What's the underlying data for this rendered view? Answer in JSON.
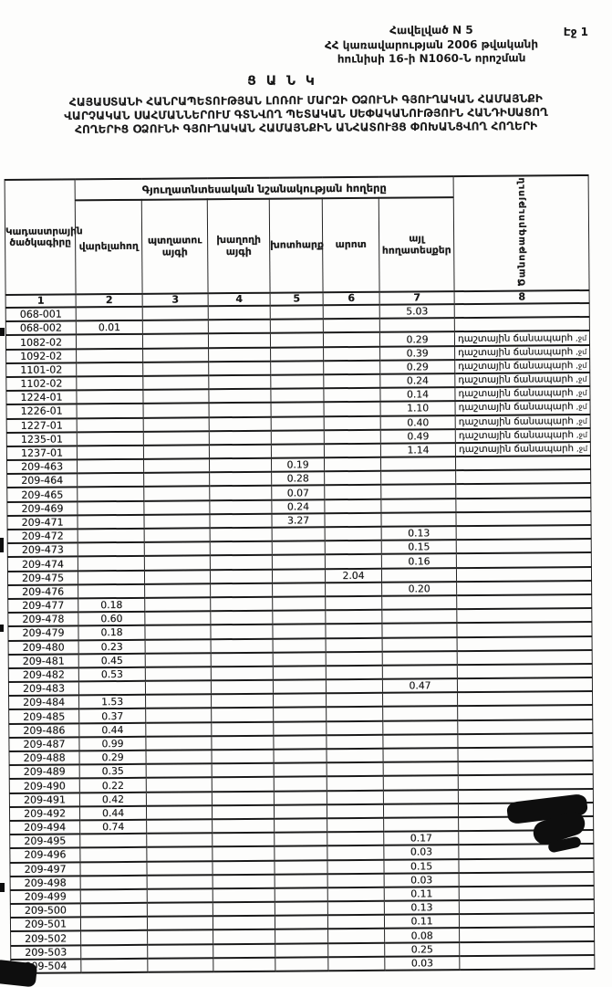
{
  "page": {
    "page_label": "Էջ 1",
    "appendix": [
      "Հավելված N 5",
      "ՀՀ կառավարության 2006 թվականի",
      "հունիսի 16-ի N1060-Ն որոշման"
    ],
    "doc_title": "Ց Ա Ն Կ",
    "subtitle": [
      "ՀԱՅԱՍՏԱՆԻ ՀԱՆՐԱՊԵՏՈՒԹՅԱՆ ԼՈՌՈՒ ՄԱՐԶԻ ՕՁՈՒՆԻ ԳՅՈՒՂԱԿԱՆ ՀԱՄԱՅՆՔԻ",
      "ՎԱՐՉԱԿԱՆ ՍԱՀՄԱՆՆԵՐՈՒՄ ԳՏՆՎՈՂ ՊԵՏԱԿԱՆ ՍԵՓԱԿԱՆՈՒԹՅՈՒՆ ՀԱՆԴԻՍԱՑՈՂ",
      "ՀՈՂԵՐԻՑ ՕՁՈՒՆԻ ԳՅՈՒՂԱԿԱՆ ՀԱՄԱՅՆՔԻՆ ԱՆՀԱՏՈՒՅՑ ՓՈԽԱՆՑՎՈՂ ՀՈՂԵՐԻ"
    ]
  },
  "table": {
    "group_header": "Գյուղատնտեսական նշանակության հողերը",
    "col1_header": "Կադաստրային ծածկագիրը",
    "note_header": "Ծանոթագրություն",
    "columns": [
      "վարելահող",
      "պտղատու այգի",
      "խաղողի այգի",
      "խոտհարք",
      "արոտ",
      "այլ հողատեսքեր"
    ],
    "column_numbers": [
      "1",
      "2",
      "3",
      "4",
      "5",
      "6",
      "7",
      "8"
    ],
    "note_suffix": ",ջմ",
    "rows": [
      [
        "068-001",
        "",
        "",
        "",
        "",
        "",
        "5.03",
        ""
      ],
      [
        "068-002",
        "0.01",
        "",
        "",
        "",
        "",
        "",
        ""
      ],
      [
        "1082-02",
        "",
        "",
        "",
        "",
        "",
        "0.29",
        "դաշտային ճանապարհ"
      ],
      [
        "1092-02",
        "",
        "",
        "",
        "",
        "",
        "0.39",
        "դաշտային ճանապարհ"
      ],
      [
        "1101-02",
        "",
        "",
        "",
        "",
        "",
        "0.29",
        "դաշտային ճանապարհ"
      ],
      [
        "1102-02",
        "",
        "",
        "",
        "",
        "",
        "0.24",
        "դաշտային ճանապարհ"
      ],
      [
        "1224-01",
        "",
        "",
        "",
        "",
        "",
        "0.14",
        "դաշտային ճանապարհ"
      ],
      [
        "1226-01",
        "",
        "",
        "",
        "",
        "",
        "1.10",
        "դաշտային ճանապարհ"
      ],
      [
        "1227-01",
        "",
        "",
        "",
        "",
        "",
        "0.40",
        "դաշտային ճանապարհ"
      ],
      [
        "1235-01",
        "",
        "",
        "",
        "",
        "",
        "0.49",
        "դաշտային ճանապարհ"
      ],
      [
        "1237-01",
        "",
        "",
        "",
        "",
        "",
        "1.14",
        "դաշտային ճանապարհ"
      ],
      [
        "209-463",
        "",
        "",
        "",
        "0.19",
        "",
        "",
        ""
      ],
      [
        "209-464",
        "",
        "",
        "",
        "0.28",
        "",
        "",
        ""
      ],
      [
        "209-465",
        "",
        "",
        "",
        "0.07",
        "",
        "",
        ""
      ],
      [
        "209-469",
        "",
        "",
        "",
        "0.24",
        "",
        "",
        ""
      ],
      [
        "209-471",
        "",
        "",
        "",
        "3.27",
        "",
        "",
        ""
      ],
      [
        "209-472",
        "",
        "",
        "",
        "",
        "",
        "0.13",
        ""
      ],
      [
        "209-473",
        "",
        "",
        "",
        "",
        "",
        "0.15",
        ""
      ],
      [
        "209-474",
        "",
        "",
        "",
        "",
        "",
        "0.16",
        ""
      ],
      [
        "209-475",
        "",
        "",
        "",
        "",
        "2.04",
        "",
        ""
      ],
      [
        "209-476",
        "",
        "",
        "",
        "",
        "",
        "0.20",
        ""
      ],
      [
        "209-477",
        "0.18",
        "",
        "",
        "",
        "",
        "",
        ""
      ],
      [
        "209-478",
        "0.60",
        "",
        "",
        "",
        "",
        "",
        ""
      ],
      [
        "209-479",
        "0.18",
        "",
        "",
        "",
        "",
        "",
        ""
      ],
      [
        "209-480",
        "0.23",
        "",
        "",
        "",
        "",
        "",
        ""
      ],
      [
        "209-481",
        "0.45",
        "",
        "",
        "",
        "",
        "",
        ""
      ],
      [
        "209-482",
        "0.53",
        "",
        "",
        "",
        "",
        "",
        ""
      ],
      [
        "209-483",
        "",
        "",
        "",
        "",
        "",
        "0.47",
        ""
      ],
      [
        "209-484",
        "1.53",
        "",
        "",
        "",
        "",
        "",
        ""
      ],
      [
        "209-485",
        "0.37",
        "",
        "",
        "",
        "",
        "",
        ""
      ],
      [
        "209-486",
        "0.44",
        "",
        "",
        "",
        "",
        "",
        ""
      ],
      [
        "209-487",
        "0.99",
        "",
        "",
        "",
        "",
        "",
        ""
      ],
      [
        "209-488",
        "0.29",
        "",
        "",
        "",
        "",
        "",
        ""
      ],
      [
        "209-489",
        "0.35",
        "",
        "",
        "",
        "",
        "",
        ""
      ],
      [
        "209-490",
        "0.22",
        "",
        "",
        "",
        "",
        "",
        ""
      ],
      [
        "209-491",
        "0.42",
        "",
        "",
        "",
        "",
        "",
        ""
      ],
      [
        "209-492",
        "0.44",
        "",
        "",
        "",
        "",
        "",
        ""
      ],
      [
        "209-494",
        "0.74",
        "",
        "",
        "",
        "",
        "",
        ""
      ],
      [
        "209-495",
        "",
        "",
        "",
        "",
        "",
        "0.17",
        ""
      ],
      [
        "209-496",
        "",
        "",
        "",
        "",
        "",
        "0.03",
        ""
      ],
      [
        "209-497",
        "",
        "",
        "",
        "",
        "",
        "0.15",
        ""
      ],
      [
        "209-498",
        "",
        "",
        "",
        "",
        "",
        "0.03",
        ""
      ],
      [
        "209-499",
        "",
        "",
        "",
        "",
        "",
        "0.11",
        ""
      ],
      [
        "209-500",
        "",
        "",
        "",
        "",
        "",
        "0.13",
        ""
      ],
      [
        "209-501",
        "",
        "",
        "",
        "",
        "",
        "0.11",
        ""
      ],
      [
        "209-502",
        "",
        "",
        "",
        "",
        "",
        "0.08",
        ""
      ],
      [
        "209-503",
        "",
        "",
        "",
        "",
        "",
        "0.25",
        ""
      ],
      [
        "209-504",
        "",
        "",
        "",
        "",
        "",
        "0.03",
        ""
      ]
    ]
  }
}
